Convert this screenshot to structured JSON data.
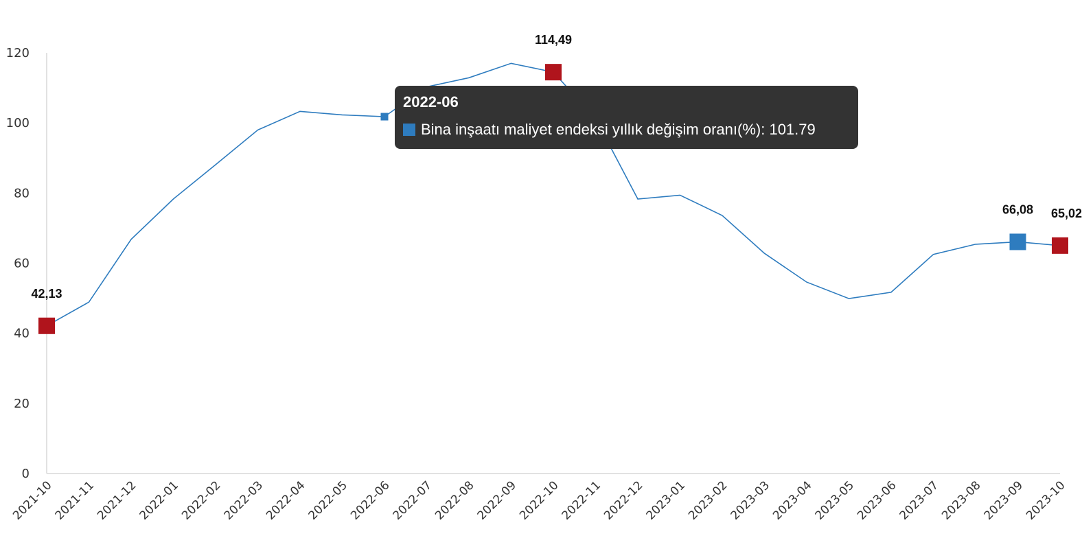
{
  "colors": {
    "line": "#2e7cbf",
    "highlight_red": "#b0141c",
    "highlight_blue": "#2e7cbf",
    "axis": "#d9d9d9",
    "tooltip_bg": "#333333"
  },
  "tooltip": {
    "title": "2022-06",
    "series_label": "Bina inşaatı maliyet endeksi yıllık değişim oranı(%)",
    "value": "101.79"
  },
  "chart_data": {
    "type": "line",
    "title": "",
    "xlabel": "",
    "ylabel": "",
    "ylim": [
      0,
      120
    ],
    "yticks": [
      0,
      20,
      40,
      60,
      80,
      100,
      120
    ],
    "grid": false,
    "legend": "none",
    "categories": [
      "2021-10",
      "2021-11",
      "2021-12",
      "2022-01",
      "2022-02",
      "2022-03",
      "2022-04",
      "2022-05",
      "2022-06",
      "2022-07",
      "2022-08",
      "2022-09",
      "2022-10",
      "2022-11",
      "2022-12",
      "2023-01",
      "2023-02",
      "2023-03",
      "2023-04",
      "2023-05",
      "2023-06",
      "2023-07",
      "2023-08",
      "2023-09",
      "2023-10"
    ],
    "series": [
      {
        "name": "Bina inşaatı maliyet endeksi yıllık değişim oranı(%)",
        "values": [
          42.13,
          48.9,
          66.8,
          78.3,
          88.1,
          98.0,
          103.3,
          102.3,
          101.79,
          110.3,
          112.9,
          117.0,
          114.49,
          101.2,
          78.3,
          79.4,
          73.6,
          62.8,
          54.6,
          49.9,
          51.7,
          62.5,
          65.4,
          66.08,
          65.02
        ]
      }
    ],
    "annotations": [
      {
        "category": "2021-10",
        "label": "42,13",
        "marker": "red"
      },
      {
        "category": "2022-10",
        "label": "114,49",
        "marker": "red"
      },
      {
        "category": "2023-09",
        "label": "66,08",
        "marker": "blue"
      },
      {
        "category": "2023-10",
        "label": "65,02",
        "marker": "red"
      }
    ],
    "hovered": "2022-06"
  }
}
